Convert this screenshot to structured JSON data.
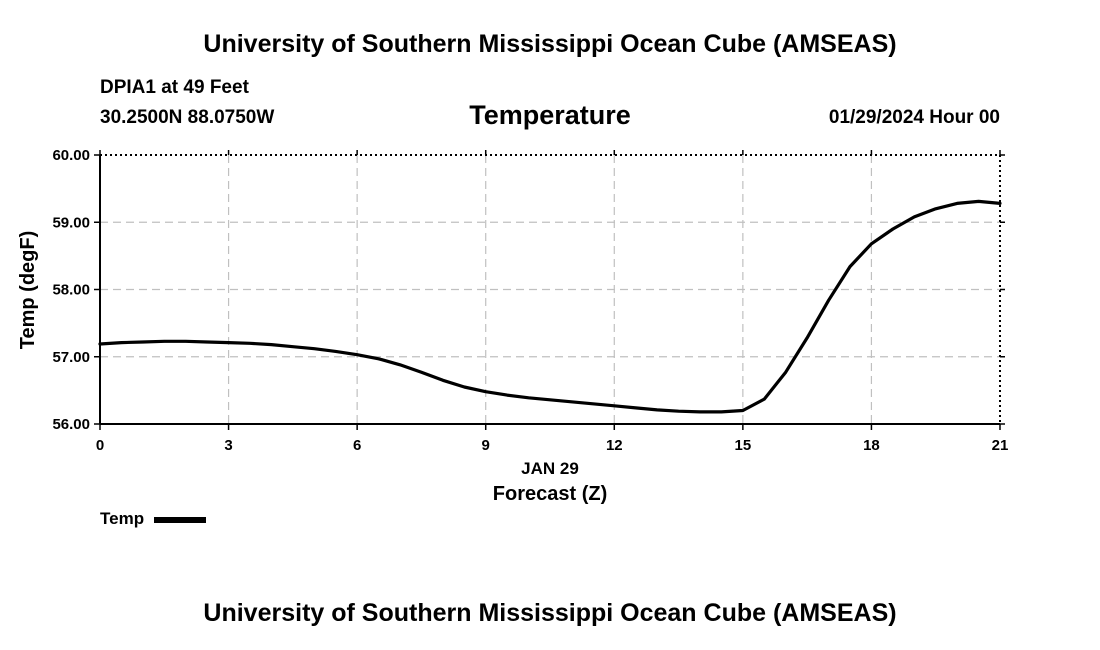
{
  "header": {
    "title": "University of Southern Mississippi Ocean Cube (AMSEAS)",
    "station": "DPIA1 at 49 Feet",
    "coords": "30.2500N  88.0750W",
    "variable": "Temperature",
    "datetime": "01/29/2024 Hour 00"
  },
  "footer": {
    "title": "University of Southern Mississippi Ocean Cube (AMSEAS)"
  },
  "chart_data": {
    "type": "line",
    "title": "Temperature",
    "xlabel": "Forecast (Z)",
    "xsublabel": "JAN 29",
    "ylabel": "Temp (degF)",
    "xlim": [
      0,
      21
    ],
    "ylim": [
      56,
      60
    ],
    "xticks": [
      0,
      3,
      6,
      9,
      12,
      15,
      18,
      21
    ],
    "xtick_labels": [
      "0",
      "3",
      "6",
      "9",
      "12",
      "15",
      "18",
      "21"
    ],
    "yticks": [
      56,
      57,
      58,
      59,
      60
    ],
    "ytick_labels": [
      "56.00",
      "57.00",
      "58.00",
      "59.00",
      "60.00"
    ],
    "grid": true,
    "legend": "bottom-left",
    "series": [
      {
        "name": "Temp",
        "color": "#000000",
        "x": [
          0,
          0.5,
          1,
          1.5,
          2,
          2.5,
          3,
          3.5,
          4,
          4.5,
          5,
          5.5,
          6,
          6.5,
          7,
          7.5,
          8,
          8.5,
          9,
          9.5,
          10,
          10.5,
          11,
          11.5,
          12,
          12.5,
          13,
          13.5,
          14,
          14.5,
          15,
          15.5,
          16,
          16.5,
          17,
          17.5,
          18,
          18.5,
          19,
          19.5,
          20,
          20.5,
          21
        ],
        "values": [
          57.19,
          57.21,
          57.22,
          57.23,
          57.23,
          57.22,
          57.21,
          57.2,
          57.18,
          57.15,
          57.12,
          57.08,
          57.03,
          56.97,
          56.88,
          56.77,
          56.65,
          56.55,
          56.48,
          56.43,
          56.39,
          56.36,
          56.33,
          56.3,
          56.27,
          56.24,
          56.21,
          56.19,
          56.18,
          56.18,
          56.2,
          56.37,
          56.77,
          57.28,
          57.84,
          58.34,
          58.68,
          58.9,
          59.08,
          59.2,
          59.28,
          59.31,
          59.28
        ]
      }
    ]
  }
}
